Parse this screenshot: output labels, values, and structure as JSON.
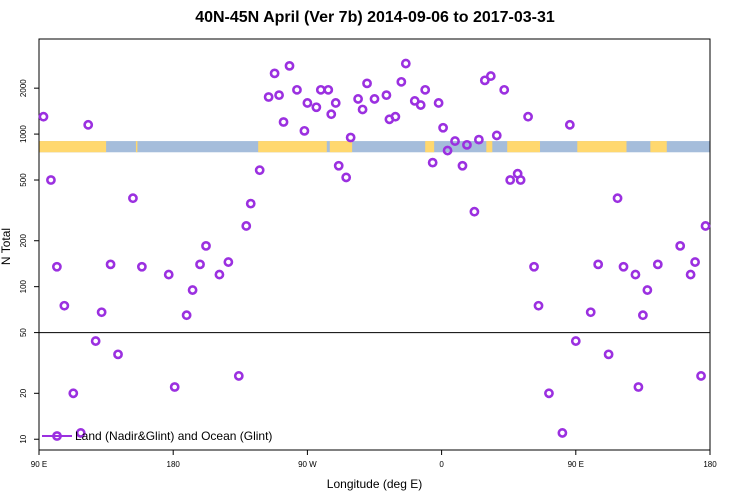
{
  "title": "40N-45N April (Ver 7b)   2014-09-06 to 2017-03-31",
  "colors": {
    "points": "#9b30e0",
    "land": "#ffd86f",
    "ocean": "#a5bddb",
    "axis": "#000000"
  },
  "chart_data": {
    "type": "scatter",
    "title": "40N-45N April (Ver 7b)   2014-09-06 to 2017-03-31",
    "xlabel": "Longitude (deg E)",
    "ylabel": "N Total",
    "xlim": [
      90,
      540
    ],
    "ylim": [
      8.5,
      4200
    ],
    "yscale": "log",
    "x_ticks": [
      {
        "value": 90,
        "label": "90 E"
      },
      {
        "value": 180,
        "label": "180"
      },
      {
        "value": 270,
        "label": "90 W"
      },
      {
        "value": 360,
        "label": "0"
      },
      {
        "value": 450,
        "label": "90 E"
      },
      {
        "value": 540,
        "label": "180"
      }
    ],
    "y_ticks": [
      10,
      20,
      50,
      100,
      200,
      500,
      1000,
      2000
    ],
    "reference_line": 50,
    "legend": {
      "label": "Land (Nadir&Glint) and Ocean (Glint)",
      "position": "bottom-left"
    },
    "land_ocean_band": {
      "y_range": [
        760,
        900
      ],
      "land_segments": [
        [
          90,
          135
        ],
        [
          155,
          156
        ],
        [
          237,
          283
        ],
        [
          285,
          300
        ],
        [
          349,
          355
        ],
        [
          390,
          394
        ],
        [
          404,
          426
        ],
        [
          451,
          484
        ],
        [
          500,
          511
        ]
      ]
    },
    "series": [
      {
        "name": "Land (Nadir&Glint) and Ocean (Glint)",
        "x": [
          93,
          98,
          102,
          107,
          113,
          118,
          123,
          128,
          132,
          138,
          143,
          153,
          159,
          177,
          181,
          189,
          193,
          198,
          202,
          211,
          217,
          224,
          229,
          232,
          238,
          244,
          248,
          251,
          254,
          258,
          263,
          268,
          270,
          276,
          279,
          284,
          286,
          289,
          291,
          296,
          299,
          304,
          307,
          310,
          315,
          323,
          325,
          329,
          333,
          336,
          342,
          346,
          349,
          354,
          358,
          361,
          364,
          369,
          374,
          377,
          382,
          385,
          389,
          393,
          397,
          402,
          406,
          411,
          413,
          418,
          422,
          425,
          432,
          441,
          446,
          450,
          460,
          465,
          472,
          478,
          482,
          490,
          492,
          495,
          498,
          505,
          520,
          527,
          530,
          534,
          537
        ],
        "y": [
          1300,
          500,
          135,
          75,
          20,
          11,
          1150,
          44,
          68,
          140,
          36,
          380,
          135,
          120,
          22,
          65,
          95,
          140,
          185,
          120,
          145,
          26,
          250,
          350,
          580,
          1750,
          2500,
          1800,
          1200,
          2800,
          1950,
          1050,
          1600,
          1500,
          1950,
          1950,
          1350,
          1600,
          620,
          520,
          950,
          1700,
          1450,
          2150,
          1700,
          1800,
          1250,
          1300,
          2200,
          2900,
          1650,
          1550,
          1950,
          650,
          1600,
          1100,
          780,
          900,
          620,
          850,
          310,
          920,
          2250,
          2400,
          980,
          1950,
          500,
          550,
          500,
          1300,
          135,
          75,
          20,
          11,
          1150,
          44,
          68,
          140,
          36,
          380,
          135,
          120,
          22,
          65,
          95,
          140,
          185,
          120,
          145,
          26,
          250
        ]
      }
    ]
  }
}
